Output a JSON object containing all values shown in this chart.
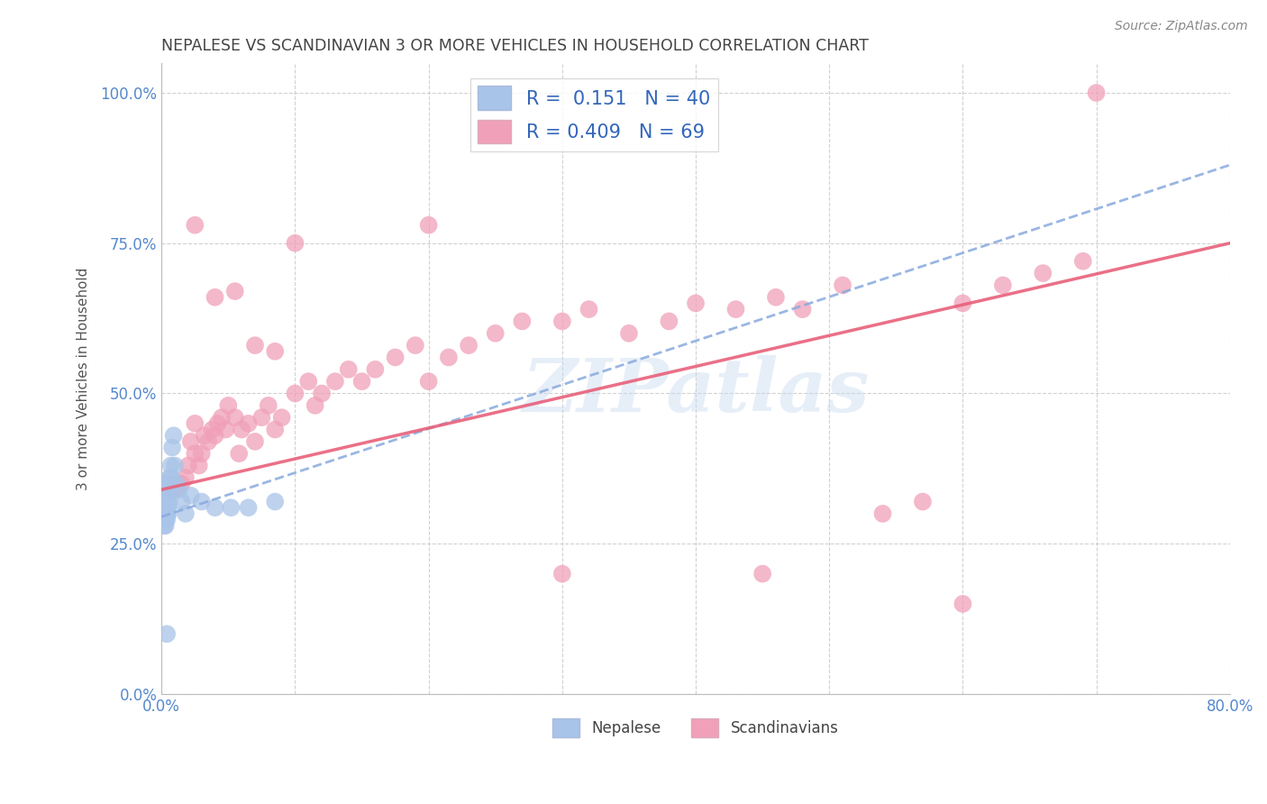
{
  "title": "NEPALESE VS SCANDINAVIAN 3 OR MORE VEHICLES IN HOUSEHOLD CORRELATION CHART",
  "source": "Source: ZipAtlas.com",
  "ylabel": "3 or more Vehicles in Household",
  "xmin": 0.0,
  "xmax": 0.8,
  "ymin": 0.0,
  "ymax": 1.05,
  "yticks": [
    0.0,
    0.25,
    0.5,
    0.75,
    1.0
  ],
  "ytick_labels": [
    "0.0%",
    "25.0%",
    "50.0%",
    "75.0%",
    "100.0%"
  ],
  "xticks": [
    0.0,
    0.1,
    0.2,
    0.3,
    0.4,
    0.5,
    0.6,
    0.7,
    0.8
  ],
  "xtick_labels": [
    "0.0%",
    "",
    "",
    "",
    "",
    "",
    "",
    "",
    "80.0%"
  ],
  "watermark_text": "ZIPatlas",
  "legend_r_blue": "0.151",
  "legend_n_blue": "40",
  "legend_r_pink": "0.409",
  "legend_n_pink": "69",
  "blue_color": "#a8c4e8",
  "pink_color": "#f0a0b8",
  "blue_line_color": "#88aadd",
  "pink_line_color": "#e8607a",
  "grid_color": "#cccccc",
  "title_color": "#444444",
  "tick_color": "#5588cc",
  "nepalese_x": [
    0.001,
    0.001,
    0.001,
    0.002,
    0.002,
    0.002,
    0.002,
    0.002,
    0.003,
    0.003,
    0.003,
    0.003,
    0.003,
    0.004,
    0.004,
    0.004,
    0.004,
    0.005,
    0.005,
    0.005,
    0.005,
    0.006,
    0.006,
    0.006,
    0.007,
    0.007,
    0.008,
    0.009,
    0.01,
    0.011,
    0.013,
    0.015,
    0.018,
    0.022,
    0.03,
    0.04,
    0.052,
    0.065,
    0.085,
    0.004
  ],
  "nepalese_y": [
    0.32,
    0.31,
    0.3,
    0.33,
    0.31,
    0.3,
    0.28,
    0.32,
    0.34,
    0.31,
    0.3,
    0.29,
    0.28,
    0.33,
    0.32,
    0.3,
    0.29,
    0.35,
    0.34,
    0.31,
    0.3,
    0.36,
    0.34,
    0.32,
    0.38,
    0.36,
    0.41,
    0.43,
    0.38,
    0.35,
    0.34,
    0.32,
    0.3,
    0.33,
    0.32,
    0.31,
    0.31,
    0.31,
    0.32,
    0.1
  ],
  "scandinavian_x": [
    0.008,
    0.01,
    0.012,
    0.015,
    0.018,
    0.02,
    0.022,
    0.025,
    0.025,
    0.028,
    0.03,
    0.032,
    0.035,
    0.038,
    0.04,
    0.042,
    0.045,
    0.048,
    0.05,
    0.055,
    0.058,
    0.06,
    0.065,
    0.07,
    0.075,
    0.08,
    0.085,
    0.09,
    0.1,
    0.11,
    0.115,
    0.12,
    0.13,
    0.14,
    0.15,
    0.16,
    0.175,
    0.19,
    0.2,
    0.215,
    0.23,
    0.25,
    0.27,
    0.3,
    0.32,
    0.35,
    0.38,
    0.4,
    0.43,
    0.46,
    0.48,
    0.51,
    0.54,
    0.57,
    0.6,
    0.63,
    0.66,
    0.69,
    0.025,
    0.04,
    0.055,
    0.07,
    0.085,
    0.1,
    0.2,
    0.3,
    0.45,
    0.6,
    0.7
  ],
  "scandinavian_y": [
    0.34,
    0.34,
    0.35,
    0.35,
    0.36,
    0.38,
    0.42,
    0.4,
    0.45,
    0.38,
    0.4,
    0.43,
    0.42,
    0.44,
    0.43,
    0.45,
    0.46,
    0.44,
    0.48,
    0.46,
    0.4,
    0.44,
    0.45,
    0.42,
    0.46,
    0.48,
    0.44,
    0.46,
    0.5,
    0.52,
    0.48,
    0.5,
    0.52,
    0.54,
    0.52,
    0.54,
    0.56,
    0.58,
    0.52,
    0.56,
    0.58,
    0.6,
    0.62,
    0.62,
    0.64,
    0.6,
    0.62,
    0.65,
    0.64,
    0.66,
    0.64,
    0.68,
    0.3,
    0.32,
    0.65,
    0.68,
    0.7,
    0.72,
    0.78,
    0.66,
    0.67,
    0.58,
    0.57,
    0.75,
    0.78,
    0.2,
    0.2,
    0.15,
    1.0
  ],
  "blue_line_x0": 0.0,
  "blue_line_y0": 0.295,
  "blue_line_x1": 0.8,
  "blue_line_y1": 0.88,
  "pink_line_x0": 0.0,
  "pink_line_y0": 0.34,
  "pink_line_x1": 0.8,
  "pink_line_y1": 0.75
}
